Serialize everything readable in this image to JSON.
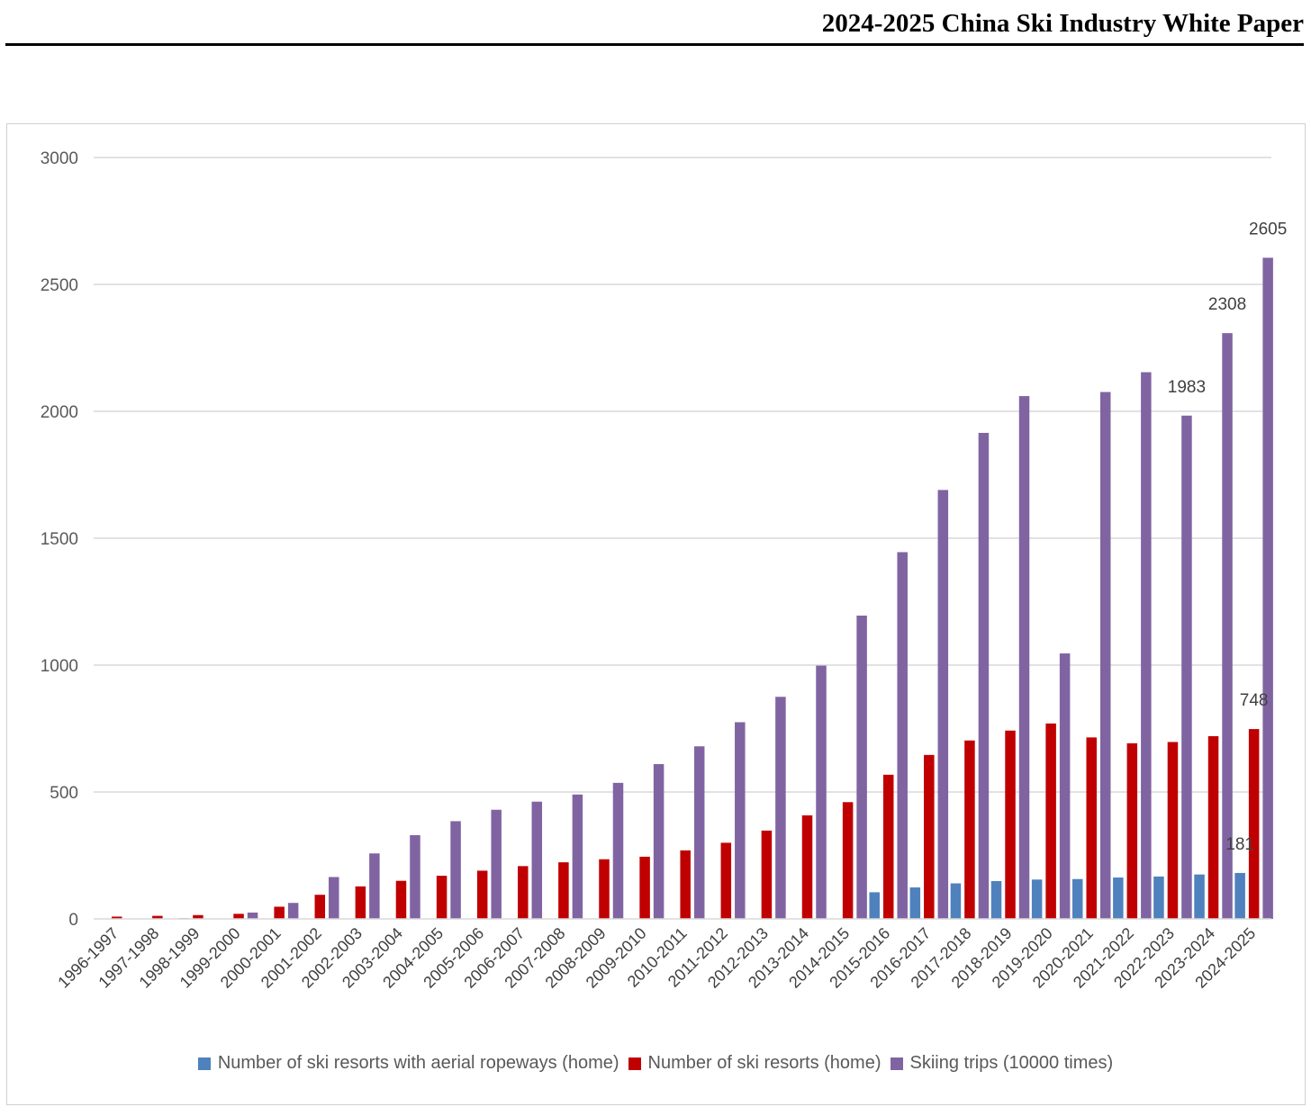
{
  "header": {
    "title": "2024-2025 China Ski Industry White Paper"
  },
  "chart_data": {
    "type": "bar",
    "title": "",
    "xlabel": "",
    "ylabel": "",
    "ylim": [
      0,
      3000
    ],
    "yticks": [
      0,
      500,
      1000,
      1500,
      2000,
      2500,
      3000
    ],
    "grid": true,
    "legend_position": "bottom",
    "categories": [
      "1996-1997",
      "1997-1998",
      "1998-1999",
      "1999-2000",
      "2000-2001",
      "2001-2002",
      "2002-2003",
      "2003-2004",
      "2004-2005",
      "2005-2006",
      "2006-2007",
      "2007-2008",
      "2008-2009",
      "2009-2010",
      "2010-2011",
      "2011-2012",
      "2012-2013",
      "2013-2014",
      "2014-2015",
      "2015-2016",
      "2016-2017",
      "2017-2018",
      "2018-2019",
      "2019-2020",
      "2020-2021",
      "2021-2022",
      "2022-2023",
      "2023-2024",
      "2024-2025"
    ],
    "series": [
      {
        "name": "Number of ski resorts with aerial ropeways (home)",
        "color": "#4f81bd",
        "values": [
          null,
          null,
          3,
          null,
          null,
          null,
          null,
          null,
          null,
          null,
          null,
          null,
          null,
          null,
          null,
          null,
          null,
          null,
          null,
          105,
          124,
          140,
          149,
          155,
          157,
          163,
          167,
          175,
          181
        ]
      },
      {
        "name": "Number of ski resorts (home)",
        "color": "#c00000",
        "values": [
          9,
          12,
          15,
          20,
          48,
          95,
          128,
          150,
          170,
          190,
          208,
          223,
          235,
          245,
          270,
          300,
          348,
          408,
          460,
          568,
          646,
          703,
          742,
          770,
          715,
          692,
          697,
          720,
          748
        ]
      },
      {
        "name": "Skiing trips (10000 times)",
        "color": "#8064a2",
        "values": [
          null,
          null,
          1,
          25,
          63,
          165,
          258,
          330,
          385,
          430,
          462,
          490,
          536,
          610,
          680,
          775,
          875,
          998,
          1195,
          1445,
          1690,
          1915,
          2060,
          1046,
          2076,
          2154,
          1983,
          2308,
          2605
        ]
      }
    ],
    "data_labels": [
      {
        "category": "2022-2023",
        "series": 2,
        "text": "1983"
      },
      {
        "category": "2023-2024",
        "series": 2,
        "text": "2308"
      },
      {
        "category": "2024-2025",
        "series": 2,
        "text": "2605"
      },
      {
        "category": "2024-2025",
        "series": 1,
        "text": "748"
      },
      {
        "category": "2024-2025",
        "series": 0,
        "text": "181"
      }
    ]
  }
}
